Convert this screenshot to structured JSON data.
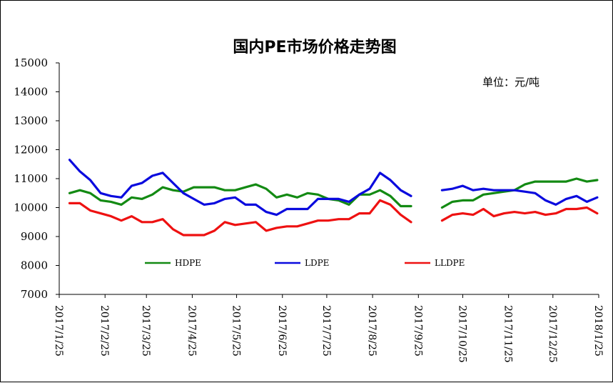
{
  "chart_data": {
    "type": "line",
    "title": "国内PE市场价格走势图",
    "unit_label": "单位：元/吨",
    "ylim": [
      7000,
      15000
    ],
    "y_ticks": [
      "15000",
      "14000",
      "13000",
      "12000",
      "11000",
      "10000",
      "9000",
      "8000",
      "7000"
    ],
    "x_ticks": [
      "2017/1/25",
      "2017/2/25",
      "2017/3/25",
      "2017/4/25",
      "2017/5/25",
      "2017/6/25",
      "2017/7/25",
      "2017/8/25",
      "2017/9/25",
      "2017/10/25",
      "2017/11/25",
      "2017/12/25",
      "2018/1/25"
    ],
    "grid": false,
    "legend_position": "inside-bottom",
    "series": [
      {
        "name": "HDPE",
        "color": "#138A13",
        "points": [
          [
            "2017-02-01",
            10500
          ],
          [
            "2017-02-08",
            10600
          ],
          [
            "2017-02-15",
            10500
          ],
          [
            "2017-02-22",
            10250
          ],
          [
            "2017-03-01",
            10200
          ],
          [
            "2017-03-08",
            10100
          ],
          [
            "2017-03-15",
            10350
          ],
          [
            "2017-03-22",
            10300
          ],
          [
            "2017-03-29",
            10450
          ],
          [
            "2017-04-05",
            10700
          ],
          [
            "2017-04-12",
            10600
          ],
          [
            "2017-04-19",
            10550
          ],
          [
            "2017-04-26",
            10700
          ],
          [
            "2017-05-03",
            10700
          ],
          [
            "2017-05-10",
            10700
          ],
          [
            "2017-05-17",
            10600
          ],
          [
            "2017-05-24",
            10600
          ],
          [
            "2017-05-31",
            10700
          ],
          [
            "2017-06-07",
            10800
          ],
          [
            "2017-06-14",
            10650
          ],
          [
            "2017-06-21",
            10350
          ],
          [
            "2017-06-28",
            10450
          ],
          [
            "2017-07-05",
            10350
          ],
          [
            "2017-07-12",
            10500
          ],
          [
            "2017-07-19",
            10450
          ],
          [
            "2017-07-26",
            10300
          ],
          [
            "2017-08-02",
            10250
          ],
          [
            "2017-08-09",
            10100
          ],
          [
            "2017-08-16",
            10450
          ],
          [
            "2017-08-23",
            10450
          ],
          [
            "2017-08-30",
            10600
          ],
          [
            "2017-09-06",
            10400
          ],
          [
            "2017-09-13",
            10050
          ],
          [
            "2017-09-20",
            10050
          ],
          null,
          [
            "2017-10-11",
            10000
          ],
          [
            "2017-10-18",
            10200
          ],
          [
            "2017-10-25",
            10250
          ],
          [
            "2017-11-01",
            10250
          ],
          [
            "2017-11-08",
            10450
          ],
          [
            "2017-11-15",
            10500
          ],
          [
            "2017-11-22",
            10550
          ],
          [
            "2017-11-29",
            10600
          ],
          [
            "2017-12-06",
            10800
          ],
          [
            "2017-12-13",
            10900
          ],
          [
            "2017-12-20",
            10900
          ],
          [
            "2017-12-27",
            10900
          ],
          [
            "2018-01-03",
            10900
          ],
          [
            "2018-01-10",
            11000
          ],
          [
            "2018-01-17",
            10900
          ],
          [
            "2018-01-24",
            10950
          ]
        ]
      },
      {
        "name": "LDPE",
        "color": "#0A0ADE",
        "points": [
          [
            "2017-02-01",
            11650
          ],
          [
            "2017-02-08",
            11250
          ],
          [
            "2017-02-15",
            10950
          ],
          [
            "2017-02-22",
            10500
          ],
          [
            "2017-03-01",
            10400
          ],
          [
            "2017-03-08",
            10350
          ],
          [
            "2017-03-15",
            10750
          ],
          [
            "2017-03-22",
            10850
          ],
          [
            "2017-03-29",
            11100
          ],
          [
            "2017-04-05",
            11200
          ],
          [
            "2017-04-12",
            10850
          ],
          [
            "2017-04-19",
            10500
          ],
          [
            "2017-04-26",
            10300
          ],
          [
            "2017-05-03",
            10100
          ],
          [
            "2017-05-10",
            10150
          ],
          [
            "2017-05-17",
            10300
          ],
          [
            "2017-05-24",
            10350
          ],
          [
            "2017-05-31",
            10100
          ],
          [
            "2017-06-07",
            10100
          ],
          [
            "2017-06-14",
            9850
          ],
          [
            "2017-06-21",
            9750
          ],
          [
            "2017-06-28",
            9950
          ],
          [
            "2017-07-05",
            9950
          ],
          [
            "2017-07-12",
            9950
          ],
          [
            "2017-07-19",
            10300
          ],
          [
            "2017-07-26",
            10300
          ],
          [
            "2017-08-02",
            10300
          ],
          [
            "2017-08-09",
            10200
          ],
          [
            "2017-08-16",
            10450
          ],
          [
            "2017-08-23",
            10650
          ],
          [
            "2017-08-30",
            11200
          ],
          [
            "2017-09-06",
            10950
          ],
          [
            "2017-09-13",
            10600
          ],
          [
            "2017-09-20",
            10400
          ],
          null,
          [
            "2017-10-11",
            10600
          ],
          [
            "2017-10-18",
            10650
          ],
          [
            "2017-10-25",
            10750
          ],
          [
            "2017-11-01",
            10600
          ],
          [
            "2017-11-08",
            10650
          ],
          [
            "2017-11-15",
            10600
          ],
          [
            "2017-11-22",
            10600
          ],
          [
            "2017-11-29",
            10600
          ],
          [
            "2017-12-06",
            10550
          ],
          [
            "2017-12-13",
            10500
          ],
          [
            "2017-12-20",
            10250
          ],
          [
            "2017-12-27",
            10100
          ],
          [
            "2018-01-03",
            10300
          ],
          [
            "2018-01-10",
            10400
          ],
          [
            "2018-01-17",
            10200
          ],
          [
            "2018-01-24",
            10350
          ]
        ]
      },
      {
        "name": "LLDPE",
        "color": "#EE1111",
        "points": [
          [
            "2017-02-01",
            10150
          ],
          [
            "2017-02-08",
            10150
          ],
          [
            "2017-02-15",
            9900
          ],
          [
            "2017-02-22",
            9800
          ],
          [
            "2017-03-01",
            9700
          ],
          [
            "2017-03-08",
            9550
          ],
          [
            "2017-03-15",
            9700
          ],
          [
            "2017-03-22",
            9500
          ],
          [
            "2017-03-29",
            9500
          ],
          [
            "2017-04-05",
            9600
          ],
          [
            "2017-04-12",
            9250
          ],
          [
            "2017-04-19",
            9050
          ],
          [
            "2017-04-26",
            9050
          ],
          [
            "2017-05-03",
            9050
          ],
          [
            "2017-05-10",
            9200
          ],
          [
            "2017-05-17",
            9500
          ],
          [
            "2017-05-24",
            9400
          ],
          [
            "2017-05-31",
            9450
          ],
          [
            "2017-06-07",
            9500
          ],
          [
            "2017-06-14",
            9200
          ],
          [
            "2017-06-21",
            9300
          ],
          [
            "2017-06-28",
            9350
          ],
          [
            "2017-07-05",
            9350
          ],
          [
            "2017-07-12",
            9450
          ],
          [
            "2017-07-19",
            9550
          ],
          [
            "2017-07-26",
            9550
          ],
          [
            "2017-08-02",
            9600
          ],
          [
            "2017-08-09",
            9600
          ],
          [
            "2017-08-16",
            9800
          ],
          [
            "2017-08-23",
            9800
          ],
          [
            "2017-08-30",
            10250
          ],
          [
            "2017-09-06",
            10100
          ],
          [
            "2017-09-13",
            9750
          ],
          [
            "2017-09-20",
            9500
          ],
          null,
          [
            "2017-10-11",
            9550
          ],
          [
            "2017-10-18",
            9750
          ],
          [
            "2017-10-25",
            9800
          ],
          [
            "2017-11-01",
            9750
          ],
          [
            "2017-11-08",
            9950
          ],
          [
            "2017-11-15",
            9700
          ],
          [
            "2017-11-22",
            9800
          ],
          [
            "2017-11-29",
            9850
          ],
          [
            "2017-12-06",
            9800
          ],
          [
            "2017-12-13",
            9850
          ],
          [
            "2017-12-20",
            9750
          ],
          [
            "2017-12-27",
            9800
          ],
          [
            "2018-01-03",
            9950
          ],
          [
            "2018-01-10",
            9950
          ],
          [
            "2018-01-17",
            10000
          ],
          [
            "2018-01-24",
            9800
          ]
        ]
      }
    ]
  }
}
